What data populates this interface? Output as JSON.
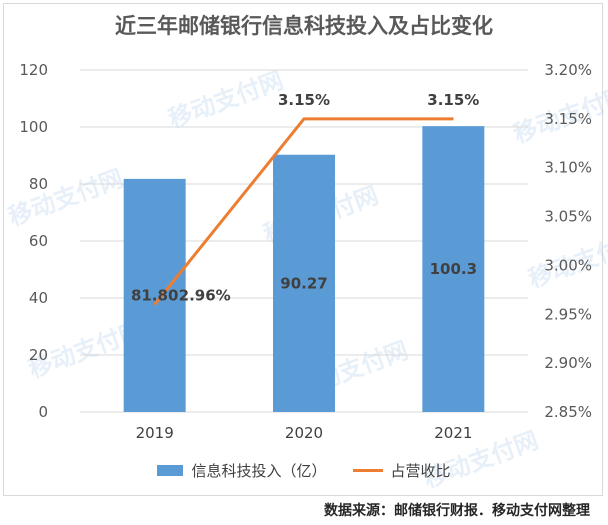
{
  "title": "近三年邮储银行信息科技投入及占比变化",
  "source": "数据来源：邮储银行财报．移动支付网整理",
  "watermark": "移动支付网",
  "colors": {
    "bar": "#5b9bd5",
    "line": "#ed7d31",
    "grid": "#d9d9d9"
  },
  "chart_data": {
    "type": "bar",
    "categories": [
      "2019",
      "2020",
      "2021"
    ],
    "series": [
      {
        "name": "信息科技投入（亿）",
        "type": "bar",
        "axis": "left",
        "values": [
          81.8,
          90.27,
          100.3
        ],
        "labels": [
          "81.80",
          "90.27",
          "100.3"
        ]
      },
      {
        "name": "占营收比",
        "type": "line",
        "axis": "right",
        "values": [
          2.96,
          3.15,
          3.15
        ],
        "labels": [
          "2.96%",
          "3.15%",
          "3.15%"
        ]
      }
    ],
    "y_left": {
      "min": 0,
      "max": 120,
      "ticks": [
        "0",
        "20",
        "40",
        "60",
        "80",
        "100",
        "120"
      ]
    },
    "y_right": {
      "min": 2.85,
      "max": 3.2,
      "ticks": [
        "2.85%",
        "2.90%",
        "2.95%",
        "3.00%",
        "3.05%",
        "3.10%",
        "3.15%",
        "3.20%"
      ]
    },
    "grid": true,
    "legend_position": "bottom"
  }
}
